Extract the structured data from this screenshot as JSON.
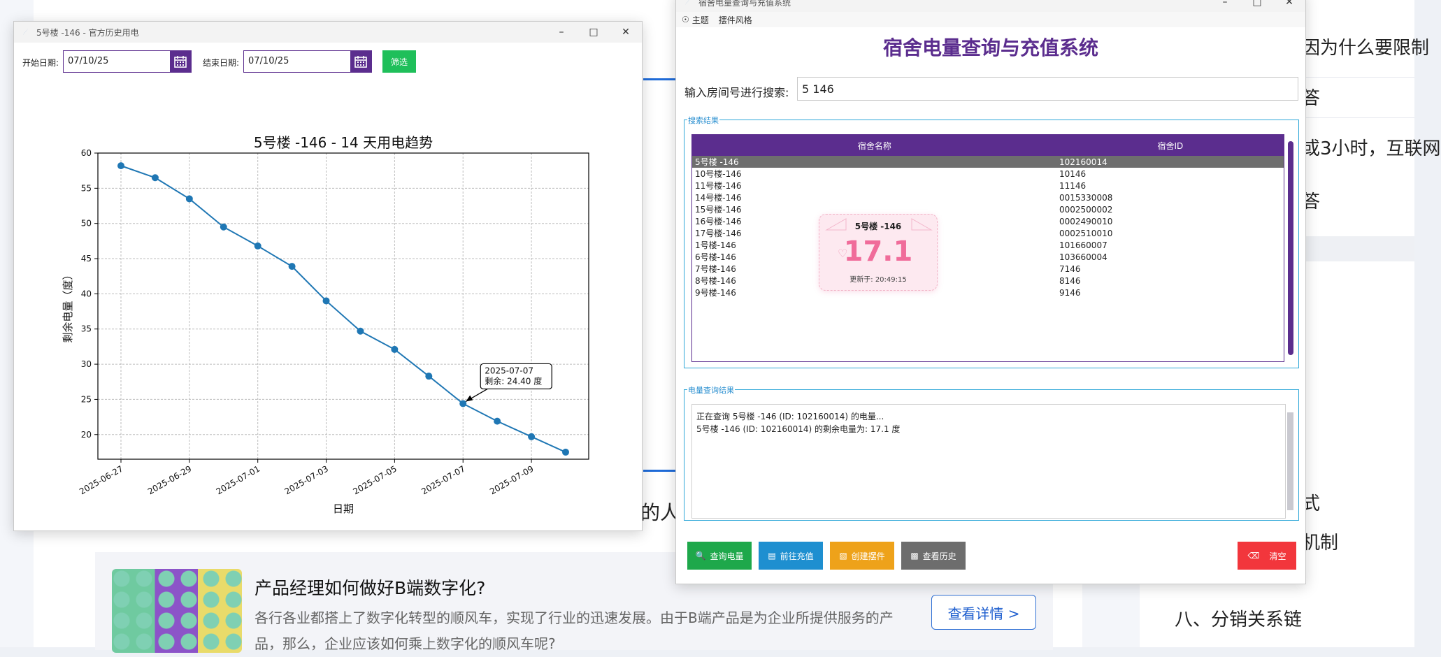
{
  "background": {
    "fragment": "的人",
    "card": {
      "title": "产品经理如何做好B端数字化?",
      "desc": "各行各业都搭上了数字化转型的顺风车，实现了行业的迅速发展。由于B端产品是为企业所提供服务的产品，那么，企业应该如何乘上数字化的顺风车呢?",
      "button": "查看详情 >"
    },
    "right": {
      "line1": "因为什么要限制",
      "line2": "答",
      "line3": "或3小时，互联网",
      "line4": "答",
      "line5": "式",
      "line6": "机制",
      "line7": "八、分销关系链"
    }
  },
  "history_window": {
    "title": "5号楼 -146 - 官方历史用电",
    "start_label": "开始日期:",
    "start_value": "07/10/25",
    "end_label": "结束日期:",
    "end_value": "07/10/25",
    "filter_button": "筛选"
  },
  "chart_data": {
    "type": "line",
    "title": "5号楼 -146 - 14 天用电趋势",
    "xlabel": "日期",
    "ylabel": "剩余电量（度）",
    "x": [
      "2025-06-27",
      "2025-06-28",
      "2025-06-29",
      "2025-06-30",
      "2025-07-01",
      "2025-07-02",
      "2025-07-03",
      "2025-07-04",
      "2025-07-05",
      "2025-07-06",
      "2025-07-07",
      "2025-07-08",
      "2025-07-09",
      "2025-07-10"
    ],
    "x_ticks": [
      "2025-06-27",
      "2025-06-29",
      "2025-07-01",
      "2025-07-03",
      "2025-07-05",
      "2025-07-07",
      "2025-07-09"
    ],
    "y": [
      58.2,
      56.5,
      53.5,
      49.5,
      46.8,
      43.9,
      39.0,
      34.7,
      32.1,
      28.3,
      24.4,
      21.9,
      19.7,
      17.5
    ],
    "ylim": [
      16.5,
      60
    ],
    "y_ticks": [
      20,
      25,
      30,
      35,
      40,
      45,
      50,
      55,
      60
    ],
    "grid": true,
    "color": "#1f77b4",
    "annotation": {
      "date": "2025-07-07",
      "line1": "2025-07-07",
      "line2": "剩余: 24.40 度"
    }
  },
  "dorm_window": {
    "title": "宿舍电量查询与充值系统",
    "menu": [
      "主题",
      "摆件风格"
    ],
    "app_title": "宿舍电量查询与充值系统",
    "search_label": "输入房间号进行搜索:",
    "search_value": "5 146",
    "results_title": "搜索结果",
    "columns": [
      "宿舍名称",
      "宿舍ID"
    ],
    "rows": [
      {
        "name": "5号楼 -146",
        "id": "102160014"
      },
      {
        "name": "10号楼-146",
        "id": "10146"
      },
      {
        "name": "11号楼-146",
        "id": "11146"
      },
      {
        "name": "14号楼-146",
        "id": "0015330008"
      },
      {
        "name": "15号楼-146",
        "id": "0002500002"
      },
      {
        "name": "16号楼-146",
        "id": "0002490010"
      },
      {
        "name": "17号楼-146",
        "id": "0002510010"
      },
      {
        "name": "1号楼-146",
        "id": "101660007"
      },
      {
        "name": "6号楼-146",
        "id": "103660004"
      },
      {
        "name": "7号楼-146",
        "id": "7146"
      },
      {
        "name": "8号楼-146",
        "id": "8146"
      },
      {
        "name": "9号楼-146",
        "id": "9146"
      }
    ],
    "popup": {
      "room": "5号楼 -146",
      "value": "17.1",
      "updated": "更新于: 20:49:15"
    },
    "query_title": "电量查询结果",
    "query_log": [
      "正在查询 5号楼 -146 (ID: 102160014) 的电量...",
      "5号楼 -146 (ID: 102160014) 的剩余电量为: 17.1 度"
    ],
    "buttons": {
      "query": "查询电量",
      "recharge": "前往充值",
      "widget": "创建摆件",
      "history": "查看历史",
      "clear": "清空"
    }
  }
}
